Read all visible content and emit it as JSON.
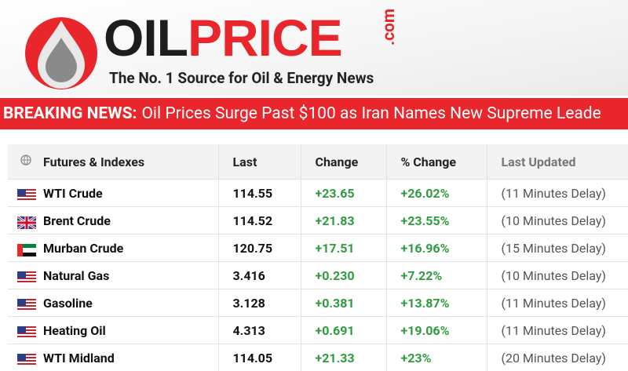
{
  "header": {
    "logo_part1": "OIL",
    "logo_part2": "PRICE",
    "logo_suffix": ".com",
    "tagline": "The No. 1 Source for Oil & Energy News"
  },
  "breaking_news": {
    "label": "BREAKING NEWS:",
    "headline": "Oil Prices Surge Past $100 as Iran Names New Supreme Leade"
  },
  "table": {
    "columns": [
      "Futures & Indexes",
      "Last",
      "Change",
      "% Change",
      "Last Updated"
    ],
    "rows": [
      [
        "WTI Crude",
        "114.55",
        "+23.65",
        "+26.02%",
        "(11 Minutes Delay)"
      ],
      [
        "Brent Crude",
        "114.52",
        "+21.83",
        "+23.55%",
        "(10 Minutes Delay)"
      ],
      [
        "Murban Crude",
        "120.75",
        "+17.51",
        "+16.96%",
        "(15 Minutes Delay)"
      ],
      [
        "Natural Gas",
        "3.416",
        "+0.230",
        "+7.22%",
        "(10 Minutes Delay)"
      ],
      [
        "Gasoline",
        "3.128",
        "+0.381",
        "+13.87%",
        "(11 Minutes Delay)"
      ],
      [
        "Heating Oil",
        "4.313",
        "+0.691",
        "+19.06%",
        "(11 Minutes Delay)"
      ],
      [
        "WTI Midland",
        "114.05",
        "+21.33",
        "+23%",
        "(20 Minutes Delay)"
      ]
    ]
  }
}
